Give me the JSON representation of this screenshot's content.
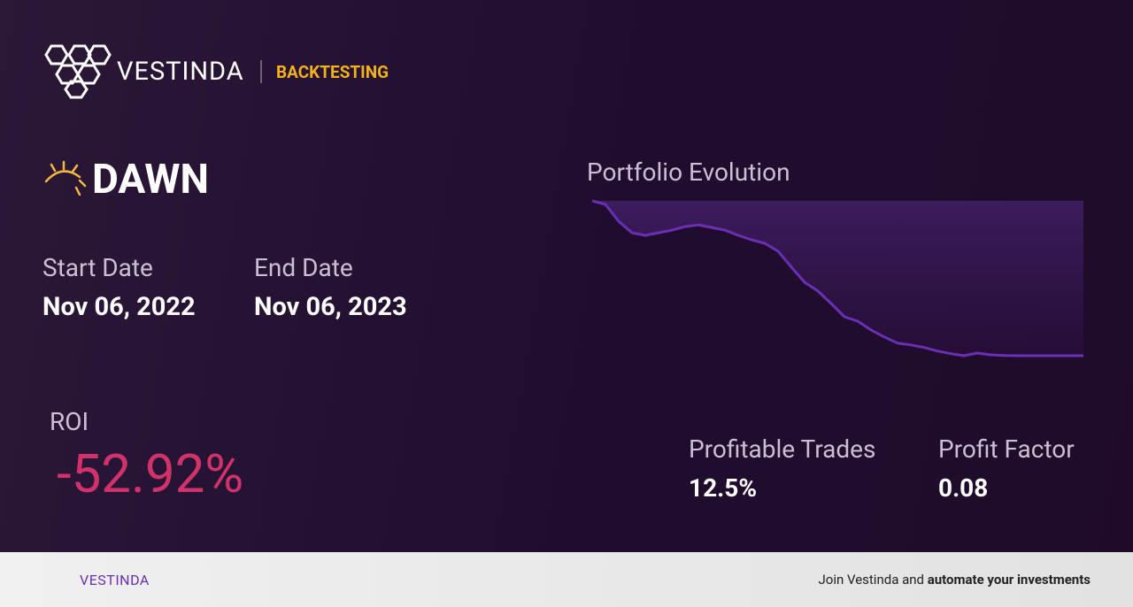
{
  "header": {
    "brand": "VESTINDA",
    "section": "BACKTESTING"
  },
  "strategy": {
    "name": "DAWN"
  },
  "dates": {
    "start_label": "Start Date",
    "start": "Nov 06, 2022",
    "end_label": "End Date",
    "end": "Nov 06, 2023"
  },
  "roi": {
    "label": "ROI",
    "value": "-52.92%"
  },
  "stats": [
    {
      "label": "Profitable Trades",
      "value": "12.5%"
    },
    {
      "label": "Profit Factor",
      "value": "0.08"
    }
  ],
  "chart_data": {
    "type": "line",
    "title": "Portfolio Evolution",
    "color": "#6a2fb5",
    "values": [
      100,
      98.8,
      93.0,
      89.1,
      88.2,
      89.1,
      90.0,
      91.2,
      91.8,
      90.9,
      90.0,
      88.2,
      86.7,
      85.5,
      82.8,
      77.4,
      72.2,
      69.2,
      64.9,
      60.4,
      58.9,
      55.9,
      53.5,
      51.4,
      50.8,
      49.9,
      48.7,
      47.8,
      47.1,
      48.0,
      47.4,
      47.2,
      47.1,
      47.1,
      47.1,
      47.1,
      47.1,
      47.1
    ]
  },
  "footer": {
    "brand": "VESTINDA",
    "text": "Join Vestinda and",
    "bold": "automate your investments"
  }
}
